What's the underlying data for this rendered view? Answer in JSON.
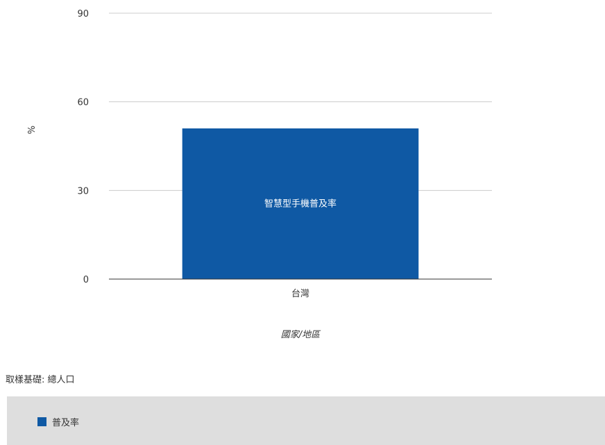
{
  "chart_data": {
    "type": "bar",
    "categories": [
      "台灣"
    ],
    "series": [
      {
        "name": "普及率",
        "values": [
          51
        ],
        "data_label": "智慧型手機普及率"
      }
    ],
    "xlabel": "國家/地區",
    "ylabel": "%",
    "ylim": [
      0,
      90
    ],
    "yticks": [
      0,
      30,
      60,
      90
    ],
    "grid": true,
    "legend": "bottom"
  },
  "colors": {
    "bar": "#0f59a4",
    "grid": "#cccccc",
    "axis": "#333333",
    "legend_bg": "#dedede"
  },
  "note": "取樣基礎: 總人口",
  "legend": {
    "label": "普及率"
  }
}
